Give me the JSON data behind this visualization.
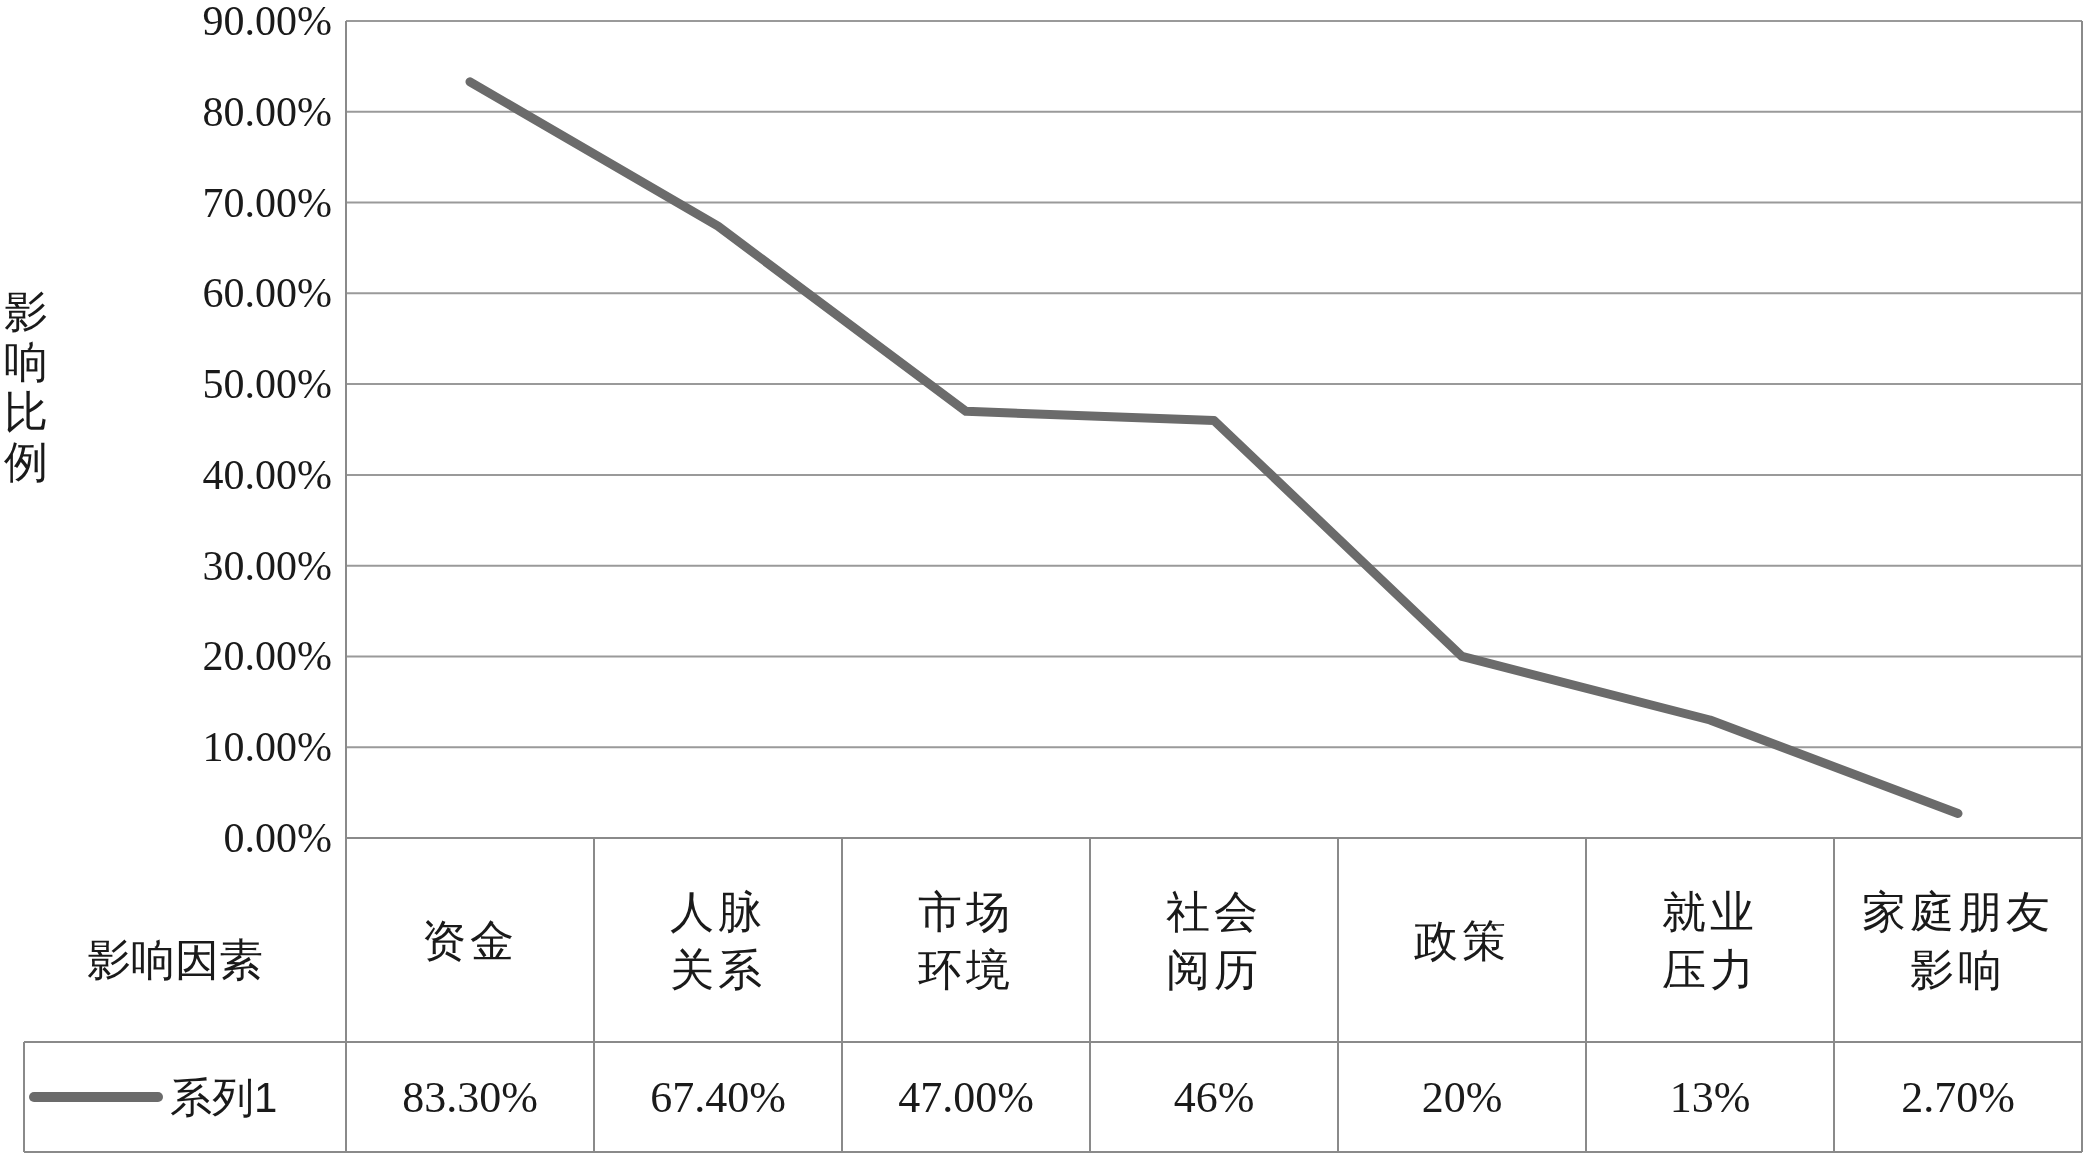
{
  "chart_data": {
    "type": "line",
    "ylabel": "影响比例",
    "xlabel": "影响因素",
    "categories": [
      "资金",
      "人脉关系",
      "市场环境",
      "社会阅历",
      "政策",
      "就业压力",
      "家庭朋友影响"
    ],
    "series": [
      {
        "name": "系列1",
        "color": "#6b6b6b",
        "values": [
          83.3,
          67.4,
          47.0,
          46,
          20,
          13,
          2.7
        ],
        "value_labels": [
          "83.30%",
          "67.40%",
          "47.00%",
          "46%",
          "20%",
          "13%",
          "2.70%"
        ]
      }
    ],
    "ylim": [
      0,
      90
    ],
    "yticks": [
      {
        "value": 0,
        "label": "0.00%"
      },
      {
        "value": 10,
        "label": "10.00%"
      },
      {
        "value": 20,
        "label": "20.00%"
      },
      {
        "value": 30,
        "label": "30.00%"
      },
      {
        "value": 40,
        "label": "40.00%"
      },
      {
        "value": 50,
        "label": "50.00%"
      },
      {
        "value": 60,
        "label": "60.00%"
      },
      {
        "value": 70,
        "label": "70.00%"
      },
      {
        "value": 80,
        "label": "80.00%"
      },
      {
        "value": 90,
        "label": "90.00%"
      }
    ],
    "grid": "y",
    "legend": "bottom left"
  }
}
